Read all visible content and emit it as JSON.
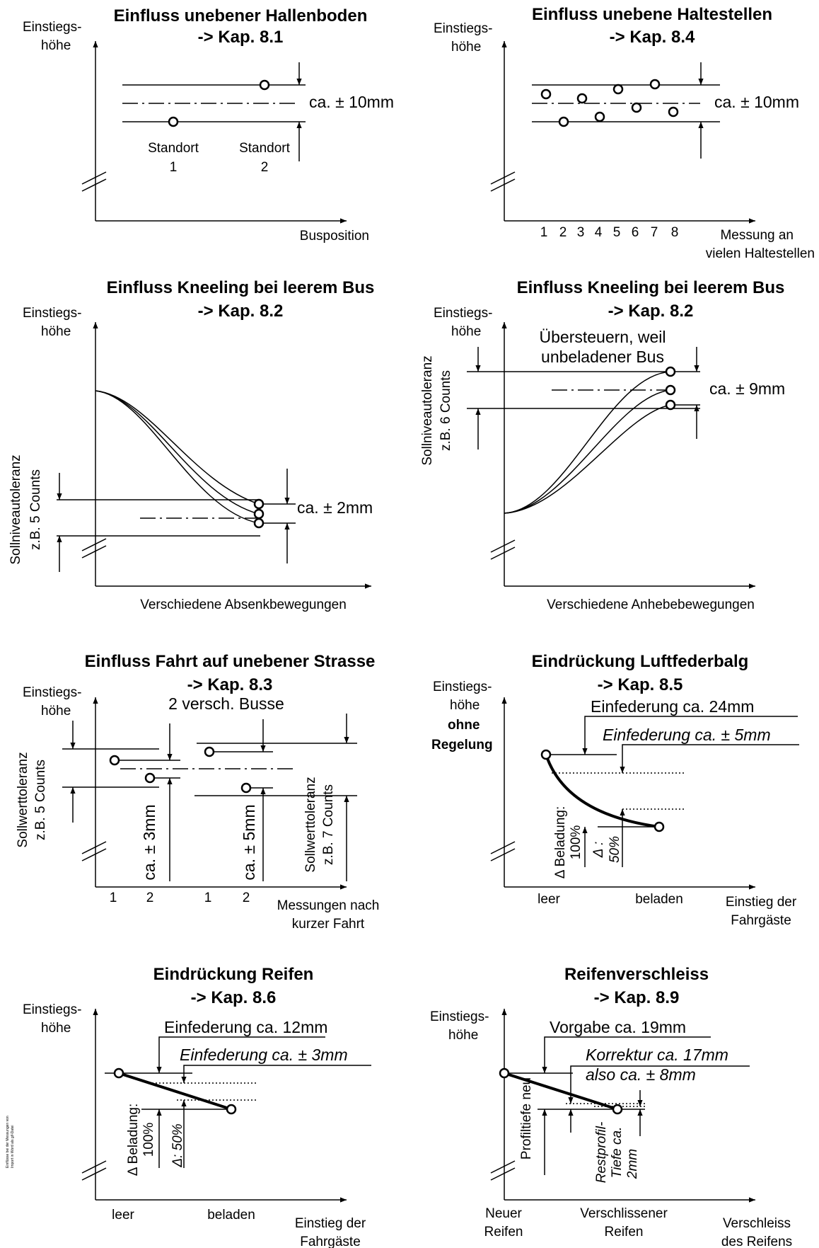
{
  "colors": {
    "ink": "#000000",
    "background": "#ffffff"
  },
  "panels": {
    "hallenboden": {
      "title": "Einfluss unebener Hallenboden",
      "ref": "-> Kap. 8.1",
      "y_label_1": "Einstiegs-",
      "y_label_2": "höhe",
      "x_label": "Busposition",
      "tolerance": "ca. ± 10mm",
      "site1_a": "Standort",
      "site1_b": "1",
      "site2_a": "Standort",
      "site2_b": "2"
    },
    "haltestellen": {
      "title": "Einfluss unebene Haltestellen",
      "ref": "-> Kap. 8.4",
      "y_label_1": "Einstiegs-",
      "y_label_2": "höhe",
      "tolerance": "ca. ± 10mm",
      "ticks": [
        "1",
        "2",
        "3",
        "4",
        "5",
        "6",
        "7",
        "8"
      ],
      "x_label_1": "Messung an",
      "x_label_2": "vielen Haltestellen"
    },
    "kneeling_absenken": {
      "title": "Einfluss Kneeling bei leerem Bus",
      "ref": "-> Kap. 8.2",
      "y_label_1": "Einstiegs-",
      "y_label_2": "höhe",
      "side_1": "Sollniveautoleranz",
      "side_2": "z.B. 5 Counts",
      "tolerance": "ca. ± 2mm",
      "x_label": "Verschiedene Absenkbewegungen"
    },
    "kneeling_anheben": {
      "title": "Einfluss Kneeling bei leerem Bus",
      "ref": "-> Kap. 8.2",
      "y_label_1": "Einstiegs-",
      "y_label_2": "höhe",
      "note_1": "Übersteuern, weil",
      "note_2": "unbeladener Bus",
      "side_1": "Sollniveautoleranz",
      "side_2": "z.B. 6 Counts",
      "tolerance": "ca. ± 9mm",
      "x_label": "Verschiedene Anhebebewegungen"
    },
    "strasse": {
      "title": "Einfluss Fahrt auf unebener Strasse",
      "ref": "-> Kap. 8.3",
      "subtitle": "2 versch. Busse",
      "y_label_1": "Einstiegs-",
      "y_label_2": "höhe",
      "side_1": "Sollwerttoleranz",
      "side_2": "z.B. 5 Counts",
      "tol_a": "ca. ± 3mm",
      "tol_b": "ca. ± 5mm",
      "side2_1": "Sollwerttoleranz",
      "side2_2": "z.B. 7 Counts",
      "ticks": [
        "1",
        "2",
        "1",
        "2"
      ],
      "x_label_1": "Messungen nach",
      "x_label_2": "kurzer Fahrt"
    },
    "luftfederbalg": {
      "title": "Eindrückung Luftfederbalg",
      "ref": "-> Kap. 8.5",
      "y_label_1": "Einstiegs-",
      "y_label_2": "höhe",
      "y_label_3": "ohne",
      "y_label_4": "Regelung",
      "spring": "Einfederung ca. 24mm",
      "spring_tol": "Einfederung ca. ± 5mm",
      "load_1": "Δ Beladung:",
      "load_2": "100%",
      "delta_1": "Δ :",
      "delta_2": "50%",
      "x_leer": "leer",
      "x_beladen": "beladen",
      "x_label_1": "Einstieg der",
      "x_label_2": "Fahrgäste"
    },
    "reifen": {
      "title": "Eindrückung Reifen",
      "ref": "-> Kap. 8.6",
      "y_label_1": "Einstiegs-",
      "y_label_2": "höhe",
      "spring": "Einfederung ca. 12mm",
      "spring_tol": "Einfederung ca. ± 3mm",
      "load_1": "Δ Beladung:",
      "load_2": "100%",
      "delta": "Δ: 50%",
      "x_leer": "leer",
      "x_beladen": "beladen",
      "x_label_1": "Einstieg der",
      "x_label_2": "Fahrgäste"
    },
    "verschleiss": {
      "title": "Reifenverschleiss",
      "ref": "-> Kap. 8.9",
      "y_label_1": "Einstiegs-",
      "y_label_2": "höhe",
      "spec": "Vorgabe ca. 19mm",
      "corr_1": "Korrektur ca. 17mm",
      "corr_2": "also ca. ± 8mm",
      "profile_new": "Profiltiefe neu",
      "rest_1": "Restprofil-",
      "rest_2": "Tiefe ca.",
      "rest_3": "2mm",
      "x_new_1": "Neuer",
      "x_new_2": "Reifen",
      "x_worn_1": "Verschlissener",
      "x_worn_2": "Reifen",
      "x_label_1": "Verschleiss",
      "x_label_2": "des Reifens"
    }
  },
  "footnote_1": "Einflüsse bei der Messungen von",
  "footnote_2": "Import in Word als gif-Datei"
}
